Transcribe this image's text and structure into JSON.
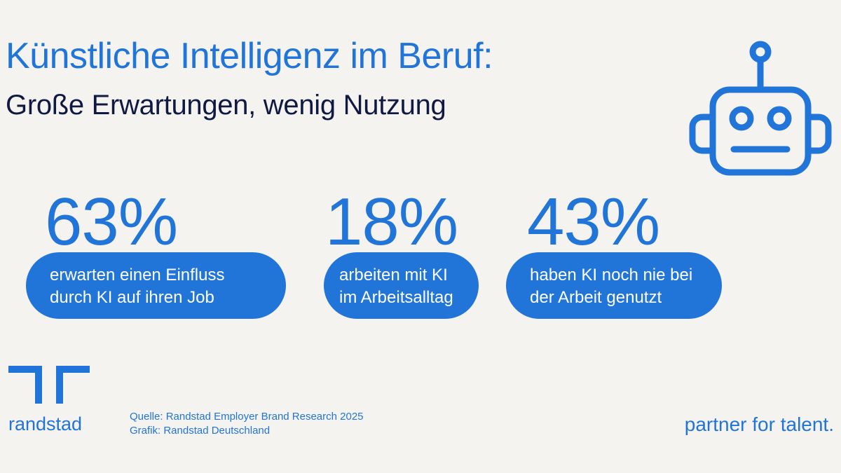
{
  "header": {
    "title": "Künstliche Intelligenz im Beruf:",
    "subtitle": "Große Erwartungen, wenig Nutzung"
  },
  "stats": [
    {
      "value": "63%",
      "text": [
        "erwarten einen Einfluss",
        "durch KI auf ihren Job"
      ]
    },
    {
      "value": "18%",
      "text": [
        "arbeiten mit KI",
        "im Arbeitsalltag"
      ]
    },
    {
      "value": "43%",
      "text": [
        "haben KI noch nie bei",
        "der Arbeit genutzt"
      ]
    }
  ],
  "footer": {
    "brand": "randstad",
    "source": [
      "Quelle: Randstad Employer Brand Research 2025",
      "Grafik: Randstad Deutschland"
    ],
    "tagline": "partner for talent."
  }
}
